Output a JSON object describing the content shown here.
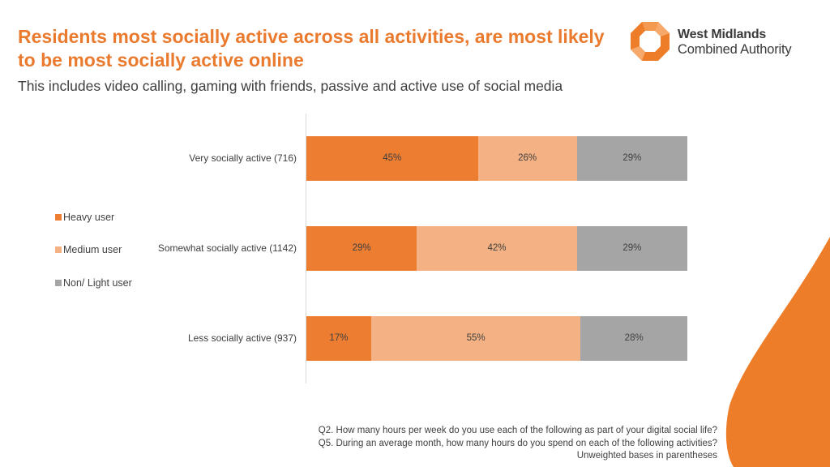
{
  "header": {
    "title": "Residents most socially active across all activities, are most likely to be most socially active online",
    "subtitle": "This includes video calling, gaming with friends, passive and active use of social media"
  },
  "logo": {
    "line1": "West Midlands",
    "line2": "Combined Authority",
    "icon": "octagon-ring-icon"
  },
  "colors": {
    "accent": "#ea7a2e",
    "heavy": "#ed7d31",
    "medium": "#f4b183",
    "light": "#a5a5a5"
  },
  "chart_data": {
    "type": "bar",
    "orientation": "horizontal",
    "stacked": true,
    "percent_stacked": true,
    "categories": [
      "Very socially active (716)",
      "Somewhat socially active (1142)",
      "Less socially active (937)"
    ],
    "series": [
      {
        "name": "Heavy user",
        "values": [
          45,
          29,
          17
        ],
        "labels": [
          "45%",
          "29%",
          "17%"
        ],
        "color": "#ed7d31"
      },
      {
        "name": "Medium user",
        "values": [
          26,
          42,
          55
        ],
        "labels": [
          "26%",
          "42%",
          "55%"
        ],
        "color": "#f4b183"
      },
      {
        "name": "Non/ Light user",
        "values": [
          29,
          29,
          28
        ],
        "labels": [
          "29%",
          "29%",
          "28%"
        ],
        "color": "#a5a5a5"
      }
    ],
    "xlim": [
      0,
      100
    ],
    "grid": false,
    "legend_position": "left"
  },
  "footnote": {
    "line1": "Q2. How many hours per week do you use each of the following as part of your digital social life?",
    "line2": "Q5. During an average month, how many hours do you spend on each of the following activities?",
    "line3": "Unweighted bases in parentheses"
  }
}
